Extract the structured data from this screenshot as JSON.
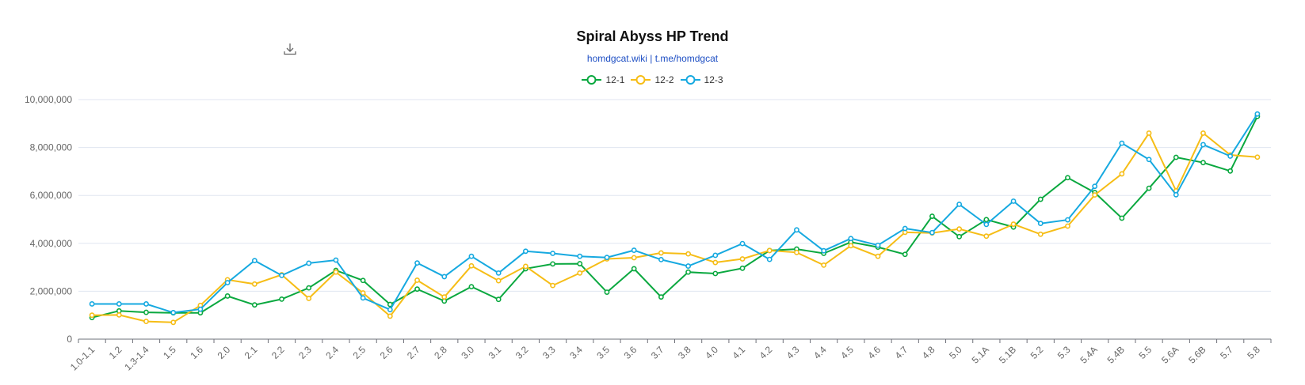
{
  "header": {
    "title": "Spiral Abyss HP Trend",
    "subtitle": "homdgcat.wiki | t.me/homdgcat"
  },
  "toolbar": {
    "download_icon": "download-icon"
  },
  "colors": {
    "12-1": "#0aa83f",
    "12-2": "#f6bd16",
    "12-3": "#16a9e0"
  },
  "chart_data": {
    "type": "line",
    "title": "Spiral Abyss HP Trend",
    "subtitle": "homdgcat.wiki | t.me/homdgcat",
    "legend_position": "top-center",
    "grid": true,
    "ylim": [
      0,
      10000000
    ],
    "yticks": [
      "0",
      "2,000,000",
      "4,000,000",
      "6,000,000",
      "8,000,000",
      "10,000,000"
    ],
    "ytick_values": [
      0,
      2000000,
      4000000,
      6000000,
      8000000,
      10000000
    ],
    "categories": [
      "1.0-1.1",
      "1.2",
      "1.3-1.4",
      "1.5",
      "1.6",
      "2.0",
      "2.1",
      "2.2",
      "2.3",
      "2.4",
      "2.5",
      "2.6",
      "2.7",
      "2.8",
      "3.0",
      "3.1",
      "3.2",
      "3.3",
      "3.4",
      "3.5",
      "3.6",
      "3.7",
      "3.8",
      "4.0",
      "4.1",
      "4.2",
      "4.3",
      "4.4",
      "4.5",
      "4.6",
      "4.7",
      "4.8",
      "5.0",
      "5.1A",
      "5.1B",
      "5.2",
      "5.3",
      "5.4A",
      "5.4B",
      "5.5",
      "5.6A",
      "5.6B",
      "5.7",
      "5.8"
    ],
    "series": [
      {
        "name": "12-1",
        "color": "#0aa83f",
        "values": [
          900000,
          1180000,
          1120000,
          1100000,
          1100000,
          1800000,
          1430000,
          1670000,
          2140000,
          2870000,
          2450000,
          1450000,
          2090000,
          1590000,
          2190000,
          1660000,
          2940000,
          3140000,
          3150000,
          1960000,
          2940000,
          1760000,
          2800000,
          2740000,
          2960000,
          3700000,
          3760000,
          3580000,
          4050000,
          3840000,
          3540000,
          5130000,
          4280000,
          4990000,
          4680000,
          5840000,
          6740000,
          6120000,
          5050000,
          6300000,
          7590000,
          7370000,
          7020000,
          9300000
        ]
      },
      {
        "name": "12-2",
        "color": "#f6bd16",
        "values": [
          1000000,
          1010000,
          740000,
          700000,
          1410000,
          2480000,
          2300000,
          2690000,
          1700000,
          2800000,
          1930000,
          960000,
          2460000,
          1760000,
          3060000,
          2440000,
          3040000,
          2240000,
          2760000,
          3350000,
          3400000,
          3600000,
          3560000,
          3200000,
          3350000,
          3700000,
          3620000,
          3090000,
          3900000,
          3460000,
          4460000,
          4430000,
          4600000,
          4300000,
          4800000,
          4380000,
          4720000,
          6020000,
          6900000,
          8600000,
          6190000,
          8600000,
          7690000,
          7600000
        ]
      },
      {
        "name": "12-3",
        "color": "#16a9e0",
        "values": [
          1470000,
          1470000,
          1470000,
          1110000,
          1250000,
          2360000,
          3280000,
          2660000,
          3170000,
          3300000,
          1720000,
          1230000,
          3180000,
          2610000,
          3460000,
          2760000,
          3670000,
          3580000,
          3460000,
          3410000,
          3710000,
          3320000,
          3050000,
          3500000,
          3990000,
          3330000,
          4560000,
          3690000,
          4200000,
          3920000,
          4620000,
          4450000,
          5630000,
          4790000,
          5760000,
          4830000,
          4980000,
          6380000,
          8180000,
          7500000,
          6030000,
          8120000,
          7640000,
          9400000
        ]
      }
    ]
  }
}
